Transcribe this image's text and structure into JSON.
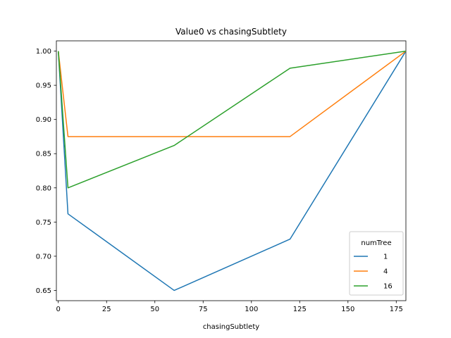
{
  "chart_data": {
    "type": "line",
    "title": "Value0 vs chasingSubtlety",
    "xlabel": "chasingSubtlety",
    "ylabel": "",
    "xlim": [
      -1,
      180
    ],
    "ylim": [
      0.635,
      1.015
    ],
    "xticks": [
      0,
      25,
      50,
      75,
      100,
      125,
      150,
      175
    ],
    "xtick_labels": [
      "0",
      "25",
      "50",
      "75",
      "100",
      "125",
      "150",
      "175"
    ],
    "yticks": [
      0.65,
      0.7,
      0.75,
      0.8,
      0.85,
      0.9,
      0.95,
      1.0
    ],
    "ytick_labels": [
      "0.65",
      "0.70",
      "0.75",
      "0.80",
      "0.85",
      "0.90",
      "0.95",
      "1.00"
    ],
    "grid": false,
    "legend": {
      "title": "numTree",
      "placement": "lower-right"
    },
    "series": [
      {
        "name": "1",
        "color": "#1f77b4",
        "x": [
          0,
          5,
          60,
          120,
          180
        ],
        "y": [
          1.0,
          0.762,
          0.65,
          0.725,
          1.0
        ]
      },
      {
        "name": "4",
        "color": "#ff7f0e",
        "x": [
          0,
          5,
          60,
          120,
          180
        ],
        "y": [
          1.0,
          0.875,
          0.875,
          0.875,
          1.0
        ]
      },
      {
        "name": "16",
        "color": "#2ca02c",
        "x": [
          0,
          5,
          60,
          120,
          180
        ],
        "y": [
          1.0,
          0.8,
          0.862,
          0.975,
          1.0
        ]
      }
    ]
  }
}
